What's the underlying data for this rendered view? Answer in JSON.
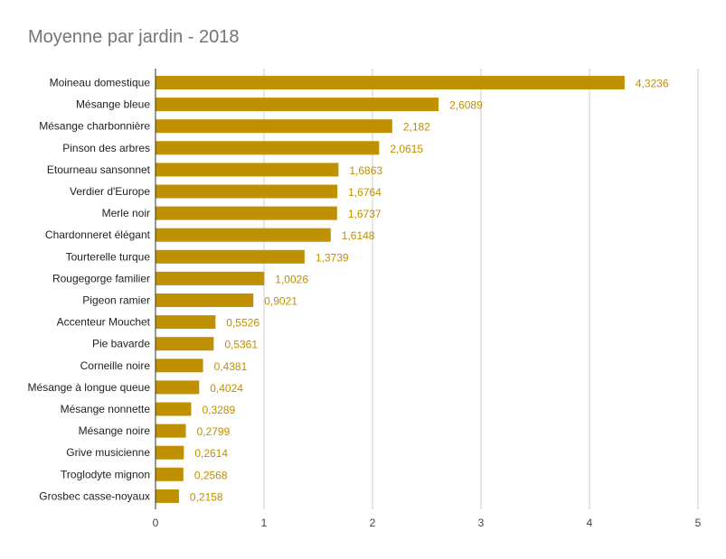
{
  "chart_data": {
    "type": "bar",
    "orientation": "horizontal",
    "title": "Moyenne par jardin - 2018",
    "categories": [
      "Moineau domestique",
      "Mésange bleue",
      "Mésange charbonnière",
      "Pinson des arbres",
      "Etourneau sansonnet",
      "Verdier d'Europe",
      "Merle noir",
      "Chardonneret élégant",
      "Tourterelle turque",
      "Rougegorge familier",
      "Pigeon ramier",
      "Accenteur Mouchet",
      "Pie bavarde",
      "Corneille noire",
      "Mésange à longue queue",
      "Mésange nonnette",
      "Mésange noire",
      "Grive musicienne",
      "Troglodyte mignon",
      "Grosbec casse-noyaux"
    ],
    "values": [
      4.3236,
      2.6089,
      2.182,
      2.0615,
      1.6863,
      1.6764,
      1.6737,
      1.6148,
      1.3739,
      1.0026,
      0.9021,
      0.5526,
      0.5361,
      0.4381,
      0.4024,
      0.3289,
      0.2799,
      0.2614,
      0.2568,
      0.2158
    ],
    "value_labels": [
      "4,3236",
      "2,6089",
      "2,182",
      "2,0615",
      "1,6863",
      "1,6764",
      "1,6737",
      "1,6148",
      "1,3739",
      "1,0026",
      "0,9021",
      "0,5526",
      "0,5361",
      "0,4381",
      "0,4024",
      "0,3289",
      "0,2799",
      "0,2614",
      "0,2568",
      "0,2158"
    ],
    "xticks": [
      "0",
      "1",
      "2",
      "3",
      "4",
      "5"
    ],
    "xlim": [
      0,
      5
    ],
    "xlabel": "",
    "ylabel": "",
    "grid": true,
    "legend": "none",
    "bar_color": "#bf9000",
    "label_color": "#bf9000",
    "grid_color": "#cccccc",
    "axis_color": "#333333"
  }
}
